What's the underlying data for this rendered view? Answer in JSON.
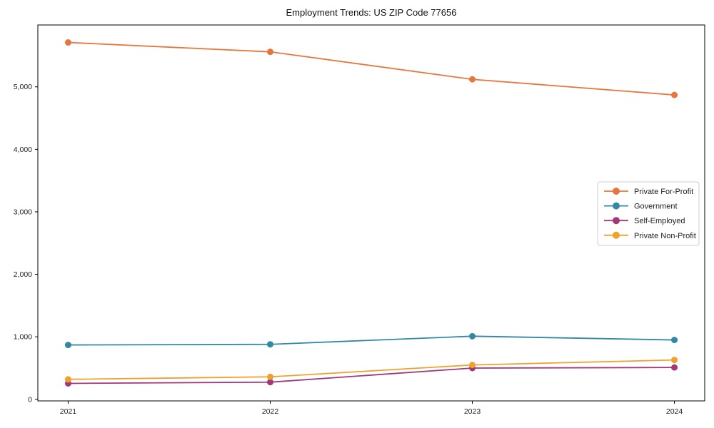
{
  "chart_data": {
    "type": "line",
    "title": "Employment Trends: US ZIP Code 77656",
    "x": [
      2021,
      2022,
      2023,
      2024
    ],
    "x_tick_labels": [
      "2021",
      "2022",
      "2023",
      "2024"
    ],
    "series": [
      {
        "name": "Private For-Profit",
        "color": "#e8763c",
        "values": [
          5710,
          5560,
          5120,
          4870
        ]
      },
      {
        "name": "Government",
        "color": "#3288a5",
        "values": [
          870,
          880,
          1010,
          950
        ]
      },
      {
        "name": "Self-Employed",
        "color": "#a13878",
        "values": [
          255,
          275,
          500,
          510
        ]
      },
      {
        "name": "Private Non-Profit",
        "color": "#f0a12d",
        "values": [
          320,
          360,
          550,
          630
        ]
      }
    ],
    "y_ticks": [
      0,
      1000,
      2000,
      3000,
      4000,
      5000
    ],
    "y_tick_labels": [
      "0",
      "1,000",
      "2,000",
      "3,000",
      "4,000",
      "5,000"
    ],
    "xlabel": "",
    "ylabel": "",
    "xlim": [
      2020.85,
      2024.15
    ],
    "ylim": [
      -25,
      5990
    ],
    "grid": false,
    "legend_position": "center-right",
    "marker": "circle",
    "axis_color": "#000000",
    "legend_border_color": "#cccccc",
    "legend_background": "#ffffff"
  }
}
